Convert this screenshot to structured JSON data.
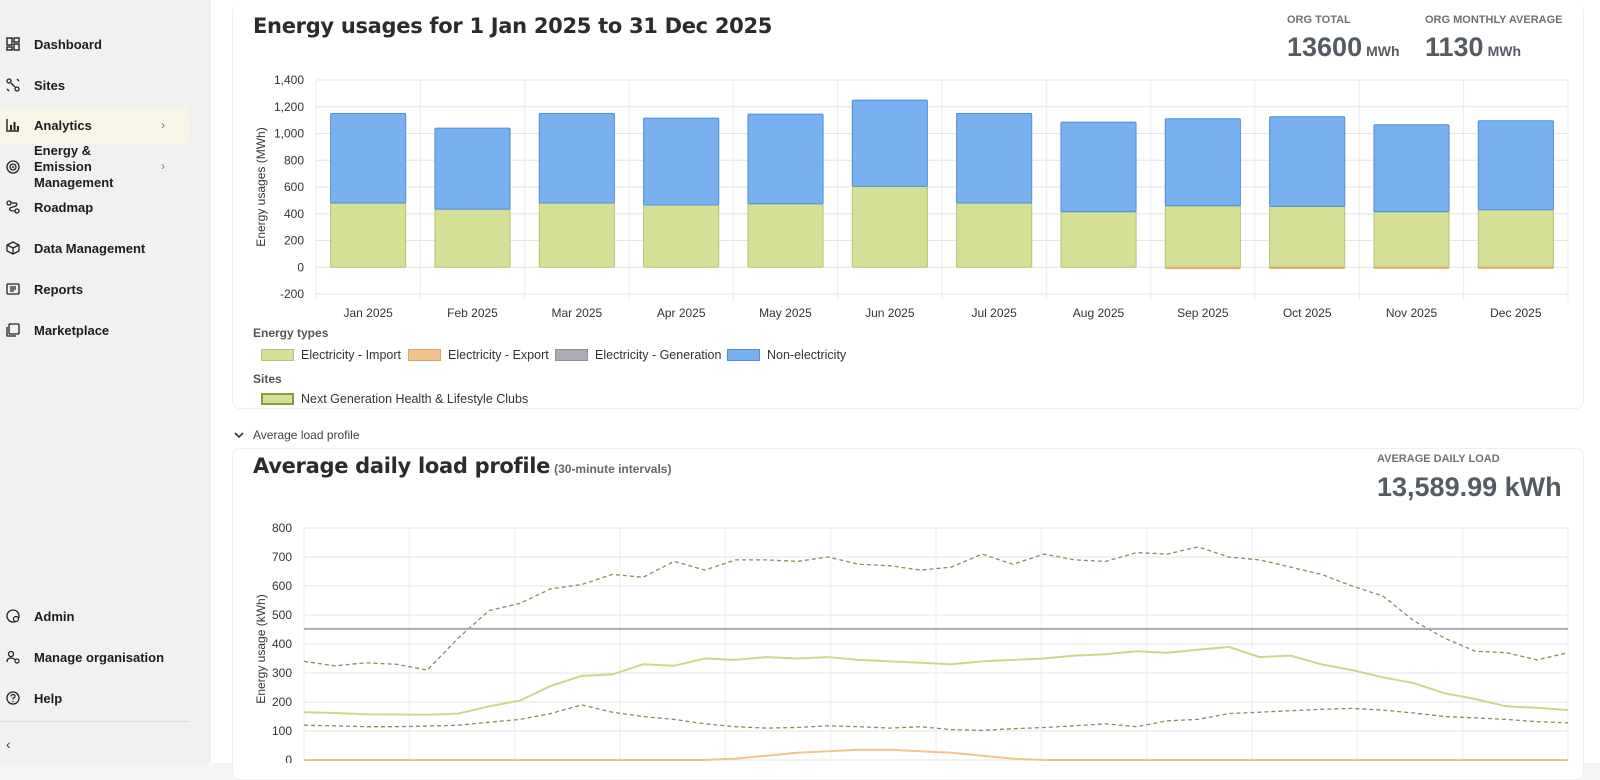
{
  "sidebar": {
    "items": [
      {
        "label": "Dashboard",
        "icon": "dashboard-icon"
      },
      {
        "label": "Sites",
        "icon": "sites-icon"
      },
      {
        "label": "Analytics",
        "icon": "analytics-icon",
        "active": true
      },
      {
        "label": "Energy & Emission Management",
        "icon": "target-icon"
      },
      {
        "label": "Roadmap",
        "icon": "roadmap-icon"
      },
      {
        "label": "Data Management",
        "icon": "cube-icon"
      },
      {
        "label": "Reports",
        "icon": "reports-icon"
      },
      {
        "label": "Marketplace",
        "icon": "marketplace-icon"
      }
    ],
    "bottom_items": [
      {
        "label": "Admin",
        "icon": "admin-icon"
      },
      {
        "label": "Manage organisation",
        "icon": "manage-org-icon"
      },
      {
        "label": "Help",
        "icon": "help-icon"
      }
    ],
    "collapse_glyph": "‹"
  },
  "usage": {
    "title": "Energy usages for 1 Jan 2025 to 31 Dec 2025",
    "org_total_label": "ORG TOTAL",
    "org_total_value": "13600",
    "org_total_unit": "MWh",
    "org_avg_label": "ORG MONTHLY AVERAGE",
    "org_avg_value": "1130",
    "org_avg_unit": "MWh",
    "energy_types_title": "Energy types",
    "energy_types": [
      {
        "label": "Electricity - Import",
        "color": "#d4e096"
      },
      {
        "label": "Electricity - Export",
        "color": "#f0c48c"
      },
      {
        "label": "Electricity - Generation",
        "color": "#a9acb3"
      },
      {
        "label": "Non-electricity",
        "color": "#78b0f0"
      }
    ],
    "sites_title": "Sites",
    "sites": [
      {
        "label": "Next Generation Health & Lifestyle Clubs",
        "color": "#d4e096"
      }
    ]
  },
  "load_toggle_label": "Average load profile",
  "load": {
    "title": "Average daily load profile",
    "subtitle": "(30-minute intervals)",
    "avg_label": "AVERAGE DAILY LOAD",
    "avg_value": "13,589.99 kWh"
  },
  "chart_data": [
    {
      "type": "bar",
      "stacked": true,
      "title": "Energy usages for 1 Jan 2025 to 31 Dec 2025",
      "ylabel": "Energy usages (MWh)",
      "ylim": [
        -200,
        1400
      ],
      "yticks": [
        "-200",
        "0",
        "200",
        "400",
        "600",
        "800",
        "1,000",
        "1,200",
        "1,400"
      ],
      "categories": [
        "Jan 2025",
        "Feb 2025",
        "Mar 2025",
        "Apr 2025",
        "May 2025",
        "Jun 2025",
        "Jul 2025",
        "Aug 2025",
        "Sep 2025",
        "Oct 2025",
        "Nov 2025",
        "Dec 2025"
      ],
      "series": [
        {
          "name": "Electricity - Import",
          "color": "#d4e096",
          "values": [
            480,
            435,
            480,
            465,
            475,
            605,
            480,
            415,
            460,
            455,
            415,
            430
          ]
        },
        {
          "name": "Electricity - Export",
          "color": "#f0c48c",
          "values": [
            0,
            0,
            0,
            0,
            0,
            0,
            0,
            0,
            -10,
            -8,
            -6,
            -6
          ]
        },
        {
          "name": "Electricity - Generation",
          "color": "#a9acb3",
          "values": [
            0,
            0,
            0,
            0,
            0,
            0,
            0,
            0,
            0,
            0,
            0,
            0
          ]
        },
        {
          "name": "Non-electricity",
          "color": "#78b0f0",
          "values": [
            670,
            605,
            670,
            650,
            670,
            645,
            670,
            670,
            650,
            670,
            650,
            665
          ]
        }
      ],
      "grid": true,
      "legend": "bottom-left"
    },
    {
      "type": "line",
      "title": "Average daily load profile",
      "ylabel": "Energy usage (kWh)",
      "ylim": [
        0,
        800
      ],
      "yticks": [
        "0",
        "100",
        "200",
        "300",
        "400",
        "500",
        "600",
        "700",
        "800"
      ],
      "series": [
        {
          "name": "Upper dashed",
          "color": "#8f8a58",
          "dashed": true,
          "values": [
            340,
            325,
            335,
            330,
            310,
            420,
            515,
            540,
            590,
            605,
            640,
            630,
            685,
            655,
            690,
            690,
            685,
            700,
            675,
            670,
            655,
            665,
            710,
            675,
            710,
            690,
            685,
            715,
            710,
            735,
            700,
            690,
            665,
            640,
            600,
            565,
            480,
            420,
            375,
            370,
            345,
            370
          ]
        },
        {
          "name": "Mean",
          "color": "#c9d88c",
          "values": [
            165,
            162,
            158,
            157,
            156,
            160,
            185,
            205,
            255,
            290,
            295,
            330,
            325,
            350,
            345,
            355,
            350,
            355,
            345,
            340,
            335,
            330,
            340,
            345,
            350,
            360,
            365,
            375,
            370,
            380,
            390,
            355,
            360,
            330,
            310,
            285,
            265,
            230,
            210,
            185,
            180,
            172
          ]
        },
        {
          "name": "Lower dashed",
          "color": "#8f8a58",
          "dashed": true,
          "values": [
            120,
            118,
            115,
            115,
            117,
            120,
            130,
            140,
            160,
            190,
            165,
            150,
            140,
            125,
            115,
            110,
            112,
            118,
            115,
            110,
            115,
            105,
            102,
            108,
            112,
            118,
            125,
            115,
            135,
            140,
            160,
            165,
            170,
            175,
            178,
            172,
            162,
            150,
            145,
            140,
            132,
            128
          ]
        },
        {
          "name": "Export",
          "color": "#f0c48c",
          "values": [
            0,
            0,
            0,
            0,
            0,
            0,
            0,
            0,
            0,
            0,
            0,
            0,
            0,
            0,
            5,
            15,
            25,
            30,
            35,
            35,
            30,
            25,
            15,
            5,
            0,
            0,
            0,
            0,
            0,
            0,
            0,
            0,
            0,
            0,
            0,
            0,
            0,
            0,
            0,
            0,
            0,
            0
          ]
        },
        {
          "name": "Reference",
          "color": "#a9acb3",
          "values": [
            452,
            452,
            452,
            452,
            452,
            452,
            452,
            452,
            452,
            452,
            452,
            452,
            452,
            452,
            452,
            452,
            452,
            452,
            452,
            452,
            452,
            452,
            452,
            452,
            452,
            452,
            452,
            452,
            452,
            452,
            452,
            452,
            452,
            452,
            452,
            452,
            452,
            452,
            452,
            452,
            452,
            452
          ]
        }
      ],
      "grid": true
    }
  ]
}
